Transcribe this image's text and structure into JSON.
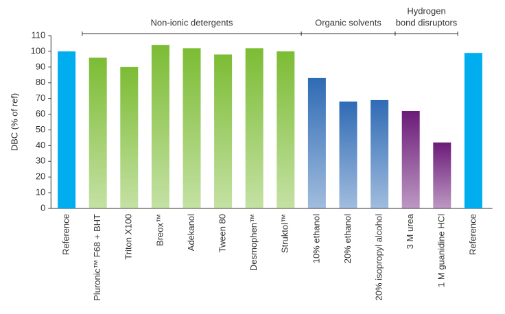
{
  "chart_data": {
    "type": "bar",
    "y_label": "DBC (% of ref)",
    "categories": [
      "Reference",
      "Pluronic™ F68 + BHT",
      "Triton X100",
      "Breox™",
      "Adekanol",
      "Tween 80",
      "Desmophen™",
      "Struktol™",
      "10% ethanol",
      "20% ethanol",
      "20% isopropyl alcohol",
      "3 M urea",
      "1 M guanidine HCl",
      "Reference"
    ],
    "values": [
      100,
      96,
      90,
      104,
      102,
      98,
      102,
      100,
      83,
      68,
      69,
      62,
      42,
      99
    ],
    "colors": [
      "#00aeef",
      "#7cbc34",
      "#7cbc34",
      "#7cbc34",
      "#7cbc34",
      "#7cbc34",
      "#7cbc34",
      "#7cbc34",
      "#2f6bb5",
      "#2f6bb5",
      "#2f6bb5",
      "#6b1b78",
      "#6b1b78",
      "#00aeef"
    ],
    "groups": [
      {
        "label": [
          "Non-ionic detergents"
        ]
      },
      {
        "label": [
          "Organic solvents"
        ]
      },
      {
        "label": [
          "Hydrogen",
          "bond disruptors"
        ]
      }
    ],
    "ylim": [
      0,
      110
    ],
    "yticks": [
      0,
      10,
      20,
      30,
      40,
      50,
      60,
      70,
      80,
      90,
      100,
      110
    ]
  }
}
